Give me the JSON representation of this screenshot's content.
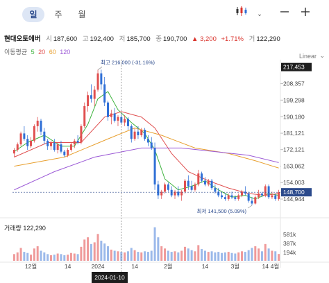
{
  "toolbar": {
    "tabs": [
      {
        "label": "일",
        "active": true
      },
      {
        "label": "주",
        "active": false
      },
      {
        "label": "월",
        "active": false
      }
    ],
    "chart_type_icon": "candlestick-icon",
    "dropdown_icon": "chevron-down-icon",
    "minus_icon": "minus-icon",
    "plus_icon": "plus-icon"
  },
  "info": {
    "name": "현대오토에버",
    "open_label": "시",
    "open": "187,600",
    "high_label": "고",
    "high": "192,400",
    "low_label": "저",
    "low": "185,700",
    "close_label": "종",
    "close": "190,700",
    "change": "▲ 3,200",
    "change_pct": "+1.71%",
    "volume_label": "거",
    "volume": "122,290"
  },
  "ma_legend": {
    "label": "이동평균",
    "periods": [
      {
        "value": "5",
        "color": "#3fb33f"
      },
      {
        "value": "20",
        "color": "#e05050"
      },
      {
        "value": "60",
        "color": "#e8a030"
      },
      {
        "value": "120",
        "color": "#9b59d6"
      }
    ]
  },
  "scale_mode": "Linear",
  "scale_chevron": "chevron-down-icon",
  "volume_panel": {
    "label": "거래량",
    "value": "122,290"
  },
  "crosshair_date": "2024-01-10",
  "colors": {
    "up": "#e05050",
    "down": "#2f6fd6",
    "accent": "#2b4a8c"
  },
  "chart_data": {
    "type": "candlestick",
    "title": "현대오토에버",
    "y_ticks": [
      217453,
      208357,
      199298,
      190180,
      181121,
      172121,
      163062,
      154003,
      144944
    ],
    "ylim": [
      140000,
      220000
    ],
    "x_tick_labels": [
      "12월",
      "14",
      "2024",
      "14",
      "2월",
      "14",
      "3월",
      "14",
      "4월"
    ],
    "high_annotation": "최고 216,000 (-31.16%)",
    "low_annotation": "최저 141,500 (5.09%)",
    "current_price_label": "148,700",
    "high_price_tag": "217,453",
    "ma_end_labels": [
      "163,062",
      "154,003"
    ],
    "volume_axis_labels": [
      "581k",
      "387k",
      "194k"
    ],
    "candles": [
      {
        "o": 170000,
        "h": 173000,
        "l": 168000,
        "c": 172000
      },
      {
        "o": 172000,
        "h": 176000,
        "l": 171000,
        "c": 175000
      },
      {
        "o": 175000,
        "h": 182000,
        "l": 174000,
        "c": 181000
      },
      {
        "o": 181000,
        "h": 185000,
        "l": 177000,
        "c": 178000
      },
      {
        "o": 178000,
        "h": 180000,
        "l": 172000,
        "c": 174000
      },
      {
        "o": 174000,
        "h": 179000,
        "l": 173000,
        "c": 177000
      },
      {
        "o": 177000,
        "h": 186000,
        "l": 176000,
        "c": 185000
      },
      {
        "o": 185000,
        "h": 190000,
        "l": 182000,
        "c": 188000
      },
      {
        "o": 188000,
        "h": 189000,
        "l": 180000,
        "c": 182000
      },
      {
        "o": 182000,
        "h": 184000,
        "l": 175000,
        "c": 177000
      },
      {
        "o": 177000,
        "h": 178000,
        "l": 172000,
        "c": 174000
      },
      {
        "o": 174000,
        "h": 177000,
        "l": 172000,
        "c": 176000
      },
      {
        "o": 176000,
        "h": 178000,
        "l": 171000,
        "c": 172000
      },
      {
        "o": 172000,
        "h": 176000,
        "l": 170000,
        "c": 175000
      },
      {
        "o": 175000,
        "h": 177000,
        "l": 170000,
        "c": 171000
      },
      {
        "o": 171000,
        "h": 172000,
        "l": 168000,
        "c": 169000
      },
      {
        "o": 169000,
        "h": 173000,
        "l": 168000,
        "c": 172000
      },
      {
        "o": 172000,
        "h": 176000,
        "l": 171000,
        "c": 175000
      },
      {
        "o": 175000,
        "h": 178000,
        "l": 173000,
        "c": 177000
      },
      {
        "o": 177000,
        "h": 180000,
        "l": 175000,
        "c": 176000
      },
      {
        "o": 176000,
        "h": 186000,
        "l": 175000,
        "c": 185000
      },
      {
        "o": 185000,
        "h": 198000,
        "l": 184000,
        "c": 196000
      },
      {
        "o": 196000,
        "h": 204000,
        "l": 193000,
        "c": 202000
      },
      {
        "o": 202000,
        "h": 208000,
        "l": 198000,
        "c": 200000
      },
      {
        "o": 200000,
        "h": 207000,
        "l": 196000,
        "c": 205000
      },
      {
        "o": 205000,
        "h": 216000,
        "l": 204000,
        "c": 214000
      },
      {
        "o": 214000,
        "h": 216000,
        "l": 205000,
        "c": 208000
      },
      {
        "o": 208000,
        "h": 212000,
        "l": 196000,
        "c": 198000
      },
      {
        "o": 198000,
        "h": 199000,
        "l": 188000,
        "c": 190000
      },
      {
        "o": 190000,
        "h": 194000,
        "l": 186000,
        "c": 192000
      },
      {
        "o": 192000,
        "h": 195000,
        "l": 187000,
        "c": 188000
      },
      {
        "o": 188000,
        "h": 191000,
        "l": 185000,
        "c": 190000
      },
      {
        "o": 190000,
        "h": 192000,
        "l": 186000,
        "c": 187000
      },
      {
        "o": 187000,
        "h": 191000,
        "l": 185000,
        "c": 189000
      },
      {
        "o": 189000,
        "h": 190000,
        "l": 183000,
        "c": 185000
      },
      {
        "o": 185000,
        "h": 186000,
        "l": 176000,
        "c": 178000
      },
      {
        "o": 178000,
        "h": 184000,
        "l": 177000,
        "c": 182000
      },
      {
        "o": 182000,
        "h": 185000,
        "l": 178000,
        "c": 180000
      },
      {
        "o": 180000,
        "h": 184000,
        "l": 179000,
        "c": 183000
      },
      {
        "o": 183000,
        "h": 184000,
        "l": 177000,
        "c": 178000
      },
      {
        "o": 178000,
        "h": 180000,
        "l": 174000,
        "c": 176000
      },
      {
        "o": 176000,
        "h": 179000,
        "l": 172000,
        "c": 173000
      },
      {
        "o": 173000,
        "h": 176000,
        "l": 150000,
        "c": 153000
      },
      {
        "o": 153000,
        "h": 155000,
        "l": 145000,
        "c": 147000
      },
      {
        "o": 147000,
        "h": 150000,
        "l": 145000,
        "c": 149000
      },
      {
        "o": 149000,
        "h": 154000,
        "l": 148000,
        "c": 153000
      },
      {
        "o": 153000,
        "h": 154000,
        "l": 149000,
        "c": 150000
      },
      {
        "o": 150000,
        "h": 152000,
        "l": 146000,
        "c": 147000
      },
      {
        "o": 147000,
        "h": 150000,
        "l": 145000,
        "c": 149000
      },
      {
        "o": 149000,
        "h": 152000,
        "l": 146000,
        "c": 147000
      },
      {
        "o": 147000,
        "h": 150000,
        "l": 144000,
        "c": 149000
      },
      {
        "o": 149000,
        "h": 156000,
        "l": 148000,
        "c": 155000
      },
      {
        "o": 155000,
        "h": 158000,
        "l": 150000,
        "c": 152000
      },
      {
        "o": 152000,
        "h": 155000,
        "l": 149000,
        "c": 150000
      },
      {
        "o": 150000,
        "h": 154000,
        "l": 149000,
        "c": 153000
      },
      {
        "o": 153000,
        "h": 161000,
        "l": 152000,
        "c": 159000
      },
      {
        "o": 159000,
        "h": 160000,
        "l": 154000,
        "c": 155000
      },
      {
        "o": 155000,
        "h": 157000,
        "l": 152000,
        "c": 153000
      },
      {
        "o": 153000,
        "h": 156000,
        "l": 152000,
        "c": 155000
      },
      {
        "o": 155000,
        "h": 156000,
        "l": 150000,
        "c": 151000
      },
      {
        "o": 151000,
        "h": 153000,
        "l": 148000,
        "c": 149000
      },
      {
        "o": 149000,
        "h": 151000,
        "l": 146000,
        "c": 147000
      },
      {
        "o": 147000,
        "h": 149000,
        "l": 145000,
        "c": 146000
      },
      {
        "o": 146000,
        "h": 148000,
        "l": 144000,
        "c": 145000
      },
      {
        "o": 145000,
        "h": 148000,
        "l": 144000,
        "c": 147000
      },
      {
        "o": 147000,
        "h": 149000,
        "l": 145000,
        "c": 146000
      },
      {
        "o": 146000,
        "h": 147000,
        "l": 144000,
        "c": 145000
      },
      {
        "o": 145000,
        "h": 148000,
        "l": 144000,
        "c": 147000
      },
      {
        "o": 147000,
        "h": 150000,
        "l": 146000,
        "c": 149000
      },
      {
        "o": 149000,
        "h": 152000,
        "l": 147000,
        "c": 148000
      },
      {
        "o": 148000,
        "h": 149000,
        "l": 143000,
        "c": 144000
      },
      {
        "o": 144000,
        "h": 146000,
        "l": 141500,
        "c": 142500
      },
      {
        "o": 142500,
        "h": 147000,
        "l": 142000,
        "c": 146000
      },
      {
        "o": 146000,
        "h": 150000,
        "l": 145000,
        "c": 148000
      },
      {
        "o": 148000,
        "h": 149000,
        "l": 146000,
        "c": 147000
      },
      {
        "o": 147000,
        "h": 153000,
        "l": 146000,
        "c": 152000
      },
      {
        "o": 152000,
        "h": 153000,
        "l": 145000,
        "c": 146000
      },
      {
        "o": 146000,
        "h": 149000,
        "l": 145000,
        "c": 147000
      },
      {
        "o": 147000,
        "h": 148000,
        "l": 144000,
        "c": 145000
      },
      {
        "o": 145000,
        "h": 150000,
        "l": 144000,
        "c": 148700
      }
    ],
    "volumes": [
      120,
      150,
      230,
      160,
      140,
      110,
      220,
      260,
      180,
      150,
      120,
      100,
      110,
      130,
      120,
      100,
      110,
      140,
      130,
      120,
      250,
      380,
      420,
      300,
      330,
      480,
      360,
      310,
      260,
      200,
      180,
      170,
      160,
      150,
      170,
      230,
      190,
      160,
      150,
      170,
      160,
      180,
      600,
      420,
      260,
      220,
      180,
      160,
      170,
      150,
      180,
      250,
      220,
      190,
      170,
      280,
      210,
      180,
      160,
      170,
      150,
      160,
      140,
      150,
      160,
      140,
      130,
      150,
      170,
      160,
      190,
      230,
      260,
      220,
      170,
      300,
      220,
      180,
      170,
      122
    ],
    "ma": [
      {
        "period": "5",
        "color": "#3fb33f",
        "values": [
          [
            0,
            171000
          ],
          [
            4,
            176000
          ],
          [
            9,
            180000
          ],
          [
            14,
            174000
          ],
          [
            18,
            174000
          ],
          [
            22,
            186000
          ],
          [
            25,
            200000
          ],
          [
            28,
            204000
          ],
          [
            31,
            194000
          ],
          [
            35,
            187000
          ],
          [
            39,
            181000
          ],
          [
            42,
            172000
          ],
          [
            45,
            156000
          ],
          [
            49,
            150000
          ],
          [
            53,
            152000
          ],
          [
            57,
            155000
          ],
          [
            61,
            150000
          ],
          [
            65,
            146000
          ],
          [
            69,
            147000
          ],
          [
            72,
            145000
          ],
          [
            76,
            148000
          ],
          [
            79,
            147000
          ]
        ]
      },
      {
        "period": "20",
        "color": "#e05050",
        "values": [
          [
            0,
            168000
          ],
          [
            10,
            176000
          ],
          [
            20,
            176000
          ],
          [
            27,
            190000
          ],
          [
            32,
            193000
          ],
          [
            38,
            190000
          ],
          [
            42,
            184000
          ],
          [
            47,
            170000
          ],
          [
            52,
            160000
          ],
          [
            58,
            155000
          ],
          [
            64,
            151000
          ],
          [
            70,
            148000
          ],
          [
            75,
            147000
          ],
          [
            79,
            148000
          ]
        ]
      },
      {
        "period": "60",
        "color": "#e8a030",
        "values": [
          [
            0,
            163000
          ],
          [
            15,
            168000
          ],
          [
            28,
            178000
          ],
          [
            36,
            184000
          ],
          [
            44,
            180000
          ],
          [
            54,
            173000
          ],
          [
            64,
            170000
          ],
          [
            72,
            166000
          ],
          [
            79,
            162000
          ]
        ]
      },
      {
        "period": "120",
        "color": "#9b59d6",
        "values": [
          [
            0,
            150000
          ],
          [
            12,
            160000
          ],
          [
            24,
            168000
          ],
          [
            38,
            173000
          ],
          [
            50,
            173000
          ],
          [
            60,
            171000
          ],
          [
            70,
            169000
          ],
          [
            79,
            165000
          ]
        ]
      }
    ]
  }
}
